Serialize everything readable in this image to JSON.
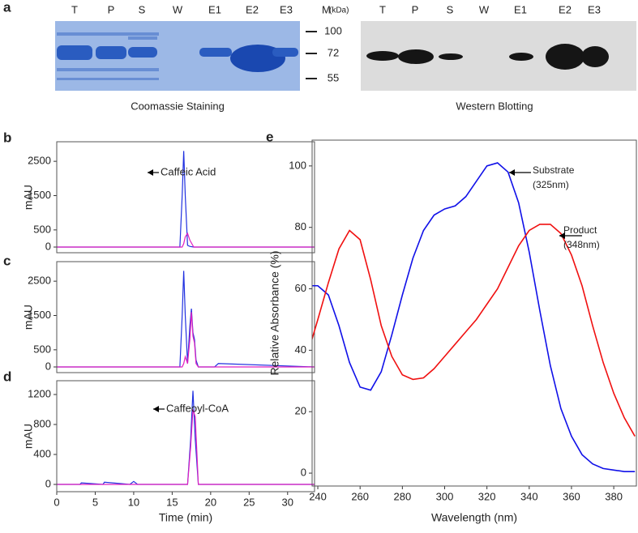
{
  "panel_a": {
    "label": "a",
    "coomassie_lanes": [
      "T",
      "P",
      "S",
      "W",
      "E1",
      "E2",
      "E3"
    ],
    "western_lanes": [
      "T",
      "P",
      "S",
      "W",
      "E1",
      "E2",
      "E3"
    ],
    "marker_label": "M",
    "marker_unit": "(kDa)",
    "marker_sizes": [
      100,
      72,
      55
    ],
    "coomassie_caption": "Coomassie Staining",
    "western_caption": "Western Blotting"
  },
  "chart_data": [
    {
      "type": "line",
      "label": "b",
      "y_label": "mAU",
      "annotation": "Caffeic Acid",
      "xlim": [
        0,
        33.5
      ],
      "ylim": [
        -165,
        3070
      ],
      "yticks": [
        0,
        500,
        1500,
        2500
      ],
      "x": [
        0,
        16,
        16.3,
        16.5,
        16.7,
        17,
        17.3,
        17.8,
        33.5
      ],
      "series": [
        {
          "color": "#2030e0",
          "values": [
            0,
            0,
            1500,
            2800,
            1500,
            50,
            20,
            0,
            0
          ]
        },
        {
          "color": "#e020c0",
          "values": [
            0,
            0,
            0,
            100,
            300,
            400,
            200,
            0,
            0
          ]
        }
      ]
    },
    {
      "type": "line",
      "label": "c",
      "y_label": "mAU",
      "xlim": [
        0,
        33.5
      ],
      "ylim": [
        -165,
        3070
      ],
      "yticks": [
        0,
        500,
        1500,
        2500
      ],
      "x": [
        0,
        16,
        16.3,
        16.5,
        16.7,
        17,
        17.3,
        17.5,
        17.7,
        17.9,
        18.1,
        18.4,
        20.5,
        21,
        33.5
      ],
      "series": [
        {
          "color": "#2030e0",
          "values": [
            0,
            0,
            1500,
            2800,
            1500,
            100,
            1200,
            1700,
            1000,
            800,
            200,
            0,
            0,
            100,
            0
          ]
        },
        {
          "color": "#e020c0",
          "values": [
            0,
            0,
            0,
            100,
            300,
            100,
            800,
            1600,
            900,
            700,
            100,
            0,
            0,
            0,
            0
          ]
        }
      ]
    },
    {
      "type": "line",
      "label": "d",
      "y_label": "mAU",
      "x_label": "Time (min)",
      "annotation": "Caffeoyl-CoA",
      "xlim": [
        0,
        33.5
      ],
      "ylim": [
        -97,
        1384
      ],
      "yticks": [
        0,
        400,
        800,
        1200
      ],
      "xticks": [
        0,
        5,
        10,
        15,
        20,
        25,
        30
      ],
      "x": [
        0,
        3,
        3.2,
        6,
        6.2,
        9.5,
        10,
        10.5,
        17,
        17.4,
        17.7,
        18,
        18.4,
        33.5
      ],
      "series": [
        {
          "color": "#2030e0",
          "values": [
            0,
            0,
            20,
            0,
            30,
            0,
            40,
            0,
            0,
            600,
            1250,
            600,
            0,
            0
          ]
        },
        {
          "color": "#e020c0",
          "values": [
            0,
            0,
            0,
            0,
            0,
            0,
            0,
            0,
            0,
            500,
            1000,
            900,
            0,
            0
          ]
        }
      ]
    },
    {
      "type": "line",
      "label": "e",
      "y_label": "Relative Absorbance (%)",
      "x_label": "Wavelength (nm)",
      "annotations": [
        "Substrate",
        "(325nm)",
        "Product",
        "(348nm)"
      ],
      "xlim": [
        237.3,
        390.7
      ],
      "ylim": [
        -4.2,
        108.4
      ],
      "xticks": [
        240,
        260,
        280,
        300,
        320,
        340,
        360,
        380
      ],
      "yticks": [
        0,
        20,
        40,
        60,
        80,
        100
      ],
      "x": [
        237,
        240,
        245,
        250,
        255,
        260,
        265,
        270,
        275,
        280,
        285,
        290,
        295,
        300,
        305,
        310,
        315,
        320,
        325,
        330,
        335,
        340,
        345,
        350,
        355,
        360,
        365,
        370,
        375,
        380,
        385,
        390
      ],
      "series": [
        {
          "color": "#1010e8",
          "values": [
            61,
            61,
            58,
            48,
            36,
            28,
            27,
            33,
            45,
            58,
            70,
            79,
            84,
            86,
            87,
            90,
            95,
            100,
            101,
            98,
            88,
            72,
            53,
            35,
            21,
            12,
            6,
            3,
            1.5,
            1,
            0.5,
            0.5
          ]
        },
        {
          "color": "#f01010",
          "values": [
            43,
            50,
            62,
            73,
            79,
            76,
            63,
            48,
            38,
            32,
            30.5,
            31,
            34,
            38,
            42,
            46,
            50,
            55,
            60,
            67,
            74,
            79,
            81,
            81,
            78,
            71,
            61,
            48,
            36,
            26,
            18,
            12
          ]
        }
      ]
    }
  ]
}
